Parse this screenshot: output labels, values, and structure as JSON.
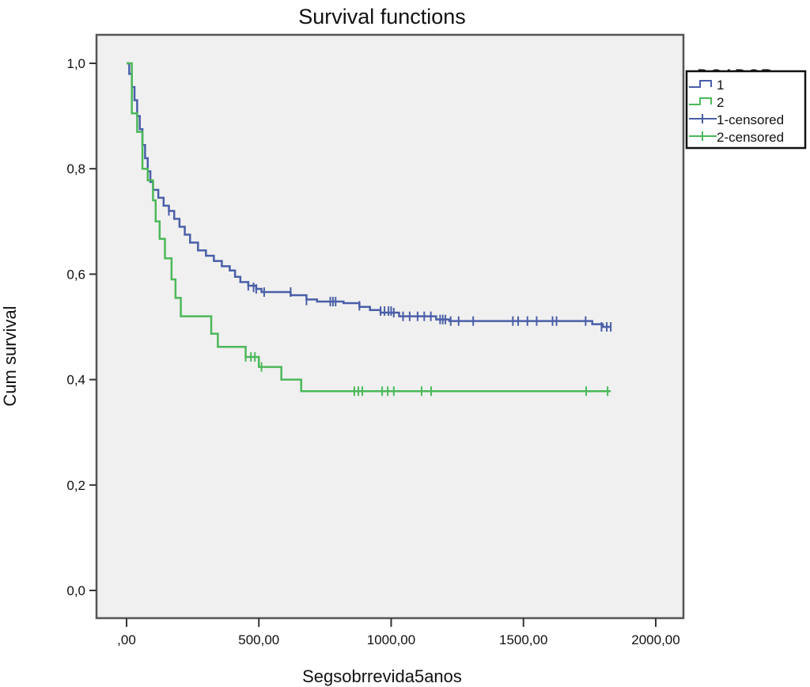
{
  "chart_data": {
    "type": "line",
    "title": "Survival functions",
    "xlabel": "Segsobrrevida5anos",
    "ylabel": "Cum survival",
    "xlim": [
      -90,
      2100
    ],
    "ylim": [
      -0.1,
      1.1
    ],
    "xticks": [
      0,
      500,
      1000,
      1500,
      2000
    ],
    "xtick_labels": [
      ",00",
      "500,00",
      "1000,00",
      "1500,00",
      "2000,00"
    ],
    "yticks": [
      0,
      0.2,
      0.4,
      0.6,
      0.8,
      1.0
    ],
    "ytick_labels": [
      "0,0",
      "0,2",
      "0,4",
      "0,6",
      "0,8",
      "1,0"
    ],
    "grid": false,
    "legend": {
      "title": "DOADOR",
      "placement": "right",
      "entries": [
        "1",
        "2",
        "1-censored",
        "2-censored"
      ]
    },
    "series": [
      {
        "name": "1",
        "color": "#4a5fa8",
        "step": [
          [
            0,
            1.0
          ],
          [
            10,
            0.98
          ],
          [
            20,
            0.955
          ],
          [
            30,
            0.93
          ],
          [
            40,
            0.9
          ],
          [
            50,
            0.875
          ],
          [
            60,
            0.845
          ],
          [
            70,
            0.82
          ],
          [
            80,
            0.795
          ],
          [
            90,
            0.775
          ],
          [
            100,
            0.76
          ],
          [
            120,
            0.745
          ],
          [
            140,
            0.73
          ],
          [
            160,
            0.72
          ],
          [
            180,
            0.705
          ],
          [
            200,
            0.69
          ],
          [
            220,
            0.675
          ],
          [
            240,
            0.66
          ],
          [
            270,
            0.645
          ],
          [
            300,
            0.635
          ],
          [
            330,
            0.625
          ],
          [
            360,
            0.615
          ],
          [
            390,
            0.607
          ],
          [
            410,
            0.595
          ],
          [
            430,
            0.585
          ],
          [
            460,
            0.578
          ],
          [
            490,
            0.572
          ],
          [
            510,
            0.566
          ],
          [
            620,
            0.56
          ],
          [
            680,
            0.552
          ],
          [
            720,
            0.548
          ],
          [
            820,
            0.545
          ],
          [
            880,
            0.538
          ],
          [
            920,
            0.532
          ],
          [
            960,
            0.527
          ],
          [
            1030,
            0.52
          ],
          [
            1170,
            0.514
          ],
          [
            1220,
            0.511
          ],
          [
            1760,
            0.505
          ],
          [
            1800,
            0.5
          ],
          [
            1830,
            0.5
          ]
        ],
        "censored": [
          [
            160,
            0.72
          ],
          [
            460,
            0.578
          ],
          [
            480,
            0.575
          ],
          [
            490,
            0.572
          ],
          [
            520,
            0.566
          ],
          [
            620,
            0.566
          ],
          [
            680,
            0.55
          ],
          [
            770,
            0.548
          ],
          [
            780,
            0.548
          ],
          [
            790,
            0.548
          ],
          [
            880,
            0.54
          ],
          [
            960,
            0.53
          ],
          [
            975,
            0.53
          ],
          [
            990,
            0.53
          ],
          [
            1000,
            0.53
          ],
          [
            1010,
            0.527
          ],
          [
            1045,
            0.52
          ],
          [
            1070,
            0.52
          ],
          [
            1100,
            0.52
          ],
          [
            1125,
            0.52
          ],
          [
            1150,
            0.52
          ],
          [
            1185,
            0.514
          ],
          [
            1195,
            0.514
          ],
          [
            1205,
            0.514
          ],
          [
            1225,
            0.511
          ],
          [
            1255,
            0.511
          ],
          [
            1310,
            0.511
          ],
          [
            1460,
            0.511
          ],
          [
            1480,
            0.511
          ],
          [
            1515,
            0.511
          ],
          [
            1550,
            0.511
          ],
          [
            1610,
            0.511
          ],
          [
            1625,
            0.511
          ],
          [
            1735,
            0.511
          ],
          [
            1795,
            0.5
          ],
          [
            1815,
            0.5
          ],
          [
            1830,
            0.5
          ]
        ]
      },
      {
        "name": "2",
        "color": "#4cb85a",
        "step": [
          [
            0,
            1.0
          ],
          [
            20,
            0.905
          ],
          [
            40,
            0.87
          ],
          [
            60,
            0.8
          ],
          [
            80,
            0.778
          ],
          [
            100,
            0.74
          ],
          [
            110,
            0.7
          ],
          [
            125,
            0.667
          ],
          [
            145,
            0.63
          ],
          [
            170,
            0.59
          ],
          [
            185,
            0.555
          ],
          [
            205,
            0.52
          ],
          [
            320,
            0.487
          ],
          [
            345,
            0.462
          ],
          [
            450,
            0.443
          ],
          [
            500,
            0.424
          ],
          [
            585,
            0.4
          ],
          [
            660,
            0.378
          ],
          [
            1830,
            0.378
          ]
        ],
        "censored": [
          [
            450,
            0.443
          ],
          [
            470,
            0.443
          ],
          [
            485,
            0.443
          ],
          [
            510,
            0.424
          ],
          [
            861,
            0.378
          ],
          [
            876,
            0.378
          ],
          [
            891,
            0.378
          ],
          [
            966,
            0.378
          ],
          [
            987,
            0.378
          ],
          [
            1010,
            0.378
          ],
          [
            1115,
            0.378
          ],
          [
            1151,
            0.378
          ],
          [
            1737,
            0.378
          ],
          [
            1818,
            0.378
          ]
        ]
      }
    ]
  }
}
